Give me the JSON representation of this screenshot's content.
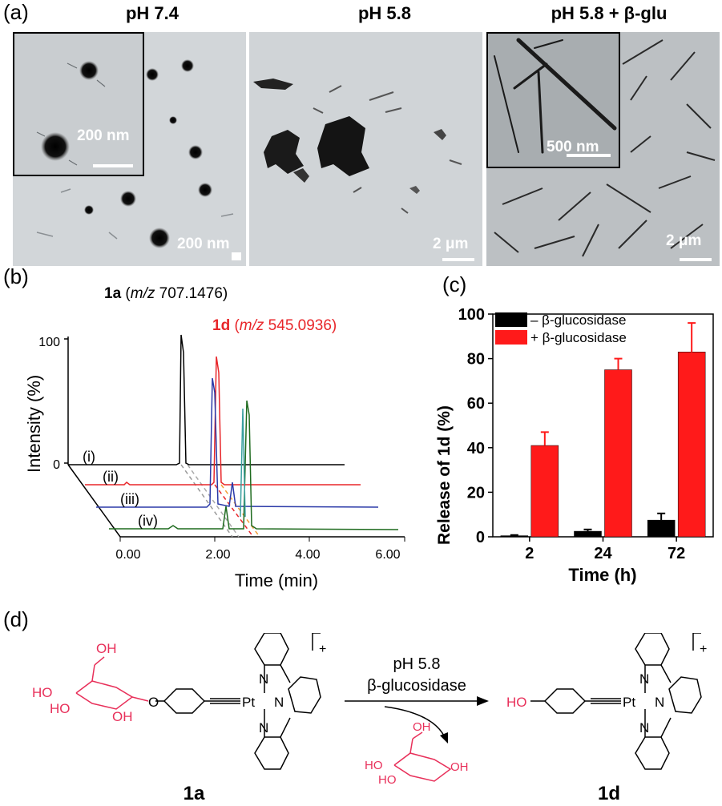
{
  "panel_labels": {
    "a": "(a)",
    "b": "(b)",
    "c": "(c)",
    "d": "(d)"
  },
  "panel_a": {
    "titles": [
      "pH 7.4",
      "pH 5.8",
      "pH 5.8 + β-glu"
    ],
    "scalebars": {
      "img1_main": "200 nm",
      "img1_inset": "200 nm",
      "img2_main": "2 μm",
      "img3_main": "2 μm",
      "img3_inset": "500 nm"
    }
  },
  "panel_b": {
    "peak_1a_bold": "1a",
    "peak_1a_rest_pre": " (",
    "peak_1a_mz": "m/z",
    "peak_1a_rest_post": " 707.1476)",
    "peak_1d_bold": "1d",
    "peak_1d_rest_pre": " (",
    "peak_1d_mz": "m/z",
    "peak_1d_rest_post": " 545.0936)",
    "ylabel": "Intensity (%)",
    "xlabel": "Time (min)",
    "y_ticks": [
      "0",
      "100"
    ],
    "x_ticks": [
      "0.00",
      "2.00",
      "4.00",
      "6.00"
    ],
    "traces": [
      {
        "label": "(i)",
        "color": "#000000"
      },
      {
        "label": "(ii)",
        "color": "#e8262a"
      },
      {
        "label": "(iii)",
        "color": "#2b3aa8"
      },
      {
        "label": "(iv)",
        "color": "#1f6b1f"
      }
    ]
  },
  "chart_data": {
    "type": "bar",
    "categories": [
      "2",
      "24",
      "72"
    ],
    "series": [
      {
        "name": "– β-glucosidase",
        "color": "#000000",
        "values": [
          0.5,
          2.5,
          7.5
        ],
        "errors": [
          0.3,
          0.8,
          3
        ]
      },
      {
        "name": "+ β-glucosidase",
        "color": "#ff1a1a",
        "values": [
          41,
          75,
          83
        ],
        "errors": [
          6,
          5,
          13
        ]
      }
    ],
    "xlabel": "Time (h)",
    "ylabel_pre": "Release of ",
    "ylabel_bold": "1d",
    "ylabel_post": " (%)",
    "ylim": [
      0,
      100
    ],
    "y_ticks": [
      "0",
      "20",
      "40",
      "60",
      "80",
      "100"
    ],
    "legend_position": "top-left"
  },
  "panel_d": {
    "condition_line1": "pH 5.8",
    "condition_line2": "β-glucosidase",
    "compound_1a": "1a",
    "compound_1d": "1d",
    "charge": "+",
    "atoms": {
      "N": "N",
      "Pt": "Pt",
      "O": "O",
      "HO": "HO",
      "OH": "OH"
    }
  }
}
